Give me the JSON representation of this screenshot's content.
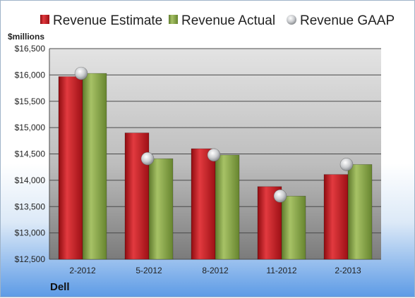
{
  "chart_data": {
    "type": "bar",
    "unit_label": "$millions",
    "company": "Dell",
    "categories": [
      "2-2012",
      "5-2012",
      "8-2012",
      "11-2012",
      "2-2013"
    ],
    "series": [
      {
        "name": "Revenue Estimate",
        "kind": "bar",
        "color": "#c8141c",
        "values": [
          15970,
          14900,
          14600,
          13880,
          14110
        ]
      },
      {
        "name": "Revenue Actual",
        "kind": "bar",
        "color": "#8aa64a",
        "values": [
          16030,
          14410,
          14480,
          13700,
          14300
        ]
      },
      {
        "name": "Revenue GAAP",
        "kind": "marker",
        "color": "#b9bcc0",
        "values": [
          16030,
          14410,
          14480,
          13700,
          14300
        ]
      }
    ],
    "ylim": [
      12500,
      16500
    ],
    "yticks": [
      12500,
      13000,
      13500,
      14000,
      14500,
      15000,
      15500,
      16000,
      16500
    ],
    "ytick_labels": [
      "$12,500",
      "$13,000",
      "$13,500",
      "$14,000",
      "$14,500",
      "$15,000",
      "$15,500",
      "$16,000",
      "$16,500"
    ],
    "grid": true,
    "legend_position": "top"
  }
}
